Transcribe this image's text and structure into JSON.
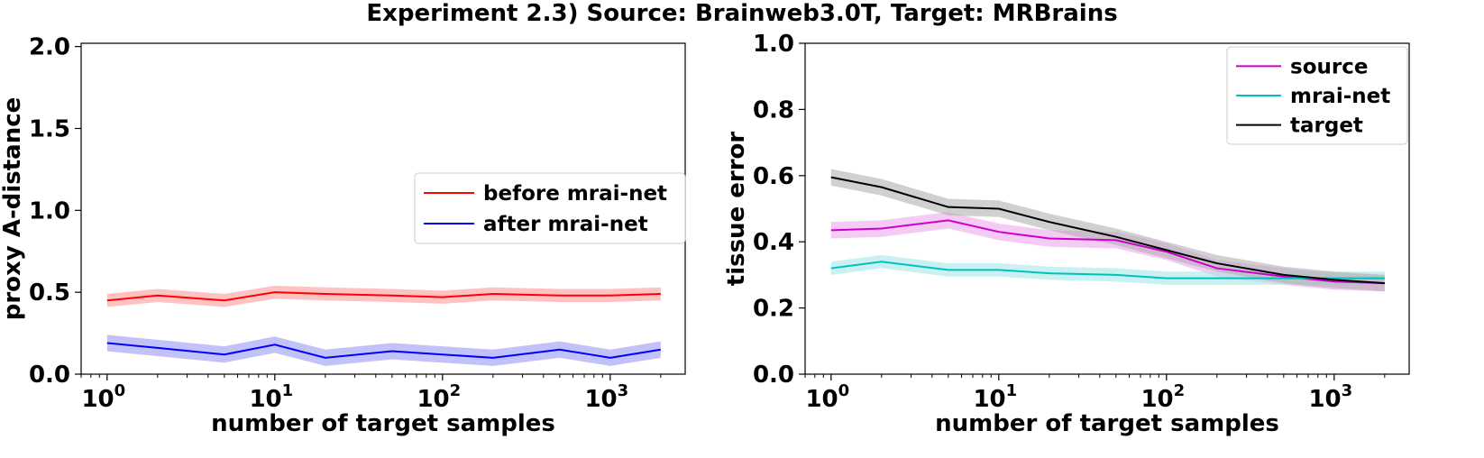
{
  "title": "Experiment 2.3) Source: Brainweb3.0T, Target: MRBrains",
  "chart_data": [
    {
      "type": "line",
      "xscale": "log",
      "x": [
        1,
        2,
        5,
        10,
        20,
        50,
        100,
        200,
        500,
        1000,
        2000
      ],
      "xlim": [
        0.7,
        2800
      ],
      "xticks": [
        1,
        10,
        100,
        1000
      ],
      "xtick_labels": [
        [
          "10",
          "0"
        ],
        [
          "10",
          "1"
        ],
        [
          "10",
          "2"
        ],
        [
          "10",
          "3"
        ]
      ],
      "ylim": [
        0,
        2.02
      ],
      "yticks": [
        0.0,
        0.5,
        1.0,
        1.5,
        2.0
      ],
      "ytick_labels": [
        "0.0",
        "0.5",
        "1.0",
        "1.5",
        "2.0"
      ],
      "xlabel": "number of target samples",
      "ylabel": "proxy A-distance",
      "legend": "center-right",
      "series": [
        {
          "name": "before mrai-net",
          "color": "#ff0000",
          "band_color": "#ff9a9a",
          "values": [
            0.45,
            0.48,
            0.45,
            0.5,
            0.49,
            0.48,
            0.47,
            0.49,
            0.48,
            0.48,
            0.49
          ],
          "band": 0.04
        },
        {
          "name": "after mrai-net",
          "color": "#0000ff",
          "band_color": "#9a9af4",
          "values": [
            0.19,
            0.16,
            0.12,
            0.18,
            0.1,
            0.14,
            0.12,
            0.1,
            0.15,
            0.1,
            0.15
          ],
          "band": 0.05
        }
      ]
    },
    {
      "type": "line",
      "xscale": "log",
      "x": [
        1,
        2,
        5,
        10,
        20,
        50,
        100,
        200,
        500,
        1000,
        2000
      ],
      "xlim": [
        0.7,
        2800
      ],
      "xticks": [
        1,
        10,
        100,
        1000
      ],
      "xtick_labels": [
        [
          "10",
          "0"
        ],
        [
          "10",
          "1"
        ],
        [
          "10",
          "2"
        ],
        [
          "10",
          "3"
        ]
      ],
      "ylim": [
        0,
        1.0
      ],
      "yticks": [
        0.0,
        0.2,
        0.4,
        0.6,
        0.8,
        1.0
      ],
      "ytick_labels": [
        "0.0",
        "0.2",
        "0.4",
        "0.6",
        "0.8",
        "1.0"
      ],
      "xlabel": "number of target samples",
      "ylabel": "tissue error",
      "legend": "top-right",
      "series": [
        {
          "name": "source",
          "color": "#cc00cc",
          "band_color": "#eea6ee",
          "values": [
            0.435,
            0.44,
            0.465,
            0.43,
            0.41,
            0.405,
            0.37,
            0.32,
            0.295,
            0.28,
            0.275
          ],
          "band": 0.025
        },
        {
          "name": "mrai-net",
          "color": "#00bfbf",
          "band_color": "#a6e8e8",
          "values": [
            0.32,
            0.34,
            0.315,
            0.315,
            0.305,
            0.3,
            0.29,
            0.29,
            0.29,
            0.29,
            0.29
          ],
          "band": 0.02
        },
        {
          "name": "target",
          "color": "#000000",
          "band_color": "#b0b0b0",
          "values": [
            0.595,
            0.565,
            0.505,
            0.5,
            0.46,
            0.415,
            0.375,
            0.335,
            0.3,
            0.285,
            0.275
          ],
          "band": 0.025
        }
      ]
    }
  ]
}
